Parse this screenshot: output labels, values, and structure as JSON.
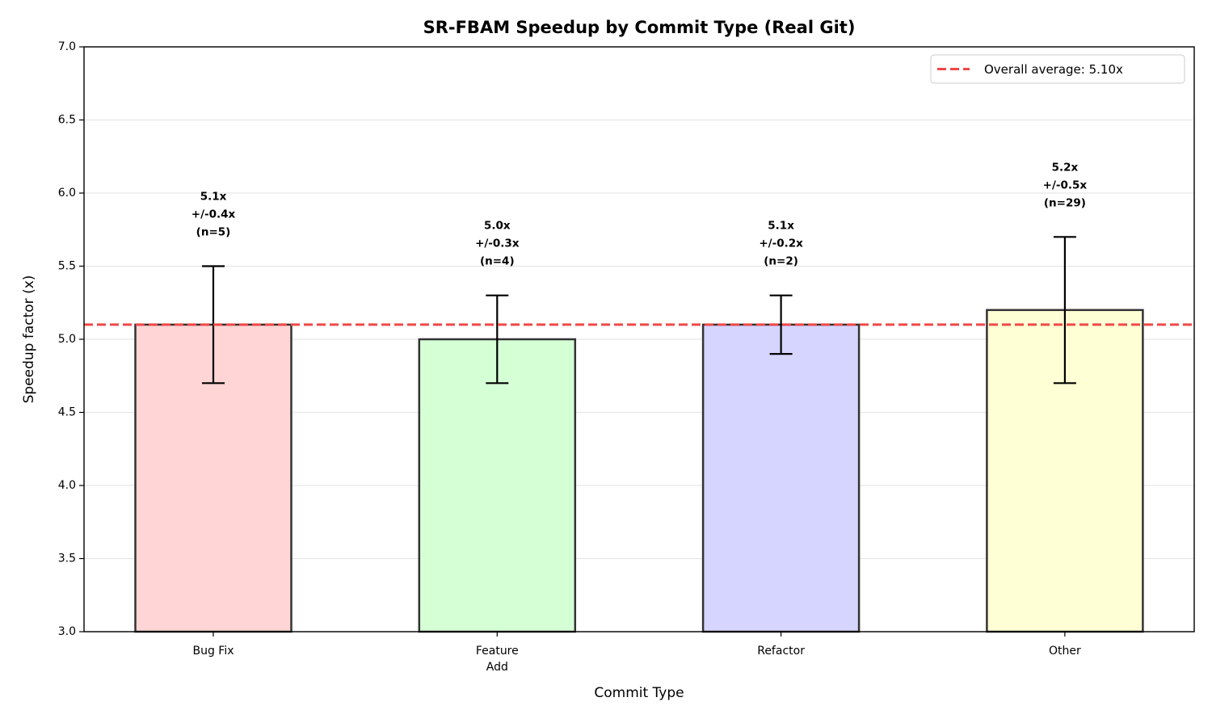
{
  "chart_data": {
    "type": "bar",
    "title": "SR-FBAM Speedup by Commit Type (Real Git)",
    "x_label": "Commit Type",
    "y_label": "Speedup factor (x)",
    "categories": [
      "Bug Fix",
      "Feature\nAdd",
      "Refactor",
      "Other"
    ],
    "values": [
      5.1,
      5.0,
      5.1,
      5.2
    ],
    "errors": [
      0.4,
      0.3,
      0.2,
      0.5
    ],
    "value_labels": [
      "5.1x\n+/-0.4x\n(n=5)",
      "5.0x\n+/-0.3x\n(n=4)",
      "5.1x\n+/-0.2x\n(n=2)",
      "5.2x\n+/-0.5x\n(n=29)"
    ],
    "colors": [
      "#ffd5d5",
      "#d5ffd5",
      "#d5d5ff",
      "#ffffd5"
    ],
    "edge_color": "#333333",
    "reference_line": {
      "value": 5.1,
      "label": "Overall average: 5.10x",
      "color": "#f04848"
    },
    "legend": "upper right",
    "ylim": [
      3,
      7
    ],
    "yticks": [
      {
        "value": 3,
        "label": "3.0"
      },
      3.5,
      {
        "value": 4,
        "label": "4.0"
      },
      4.5,
      {
        "value": 5,
        "label": "5.0"
      },
      5.5,
      {
        "value": 6,
        "label": "6.0"
      },
      6.5,
      {
        "value": 7,
        "label": "7.0"
      }
    ],
    "grid": true
  }
}
